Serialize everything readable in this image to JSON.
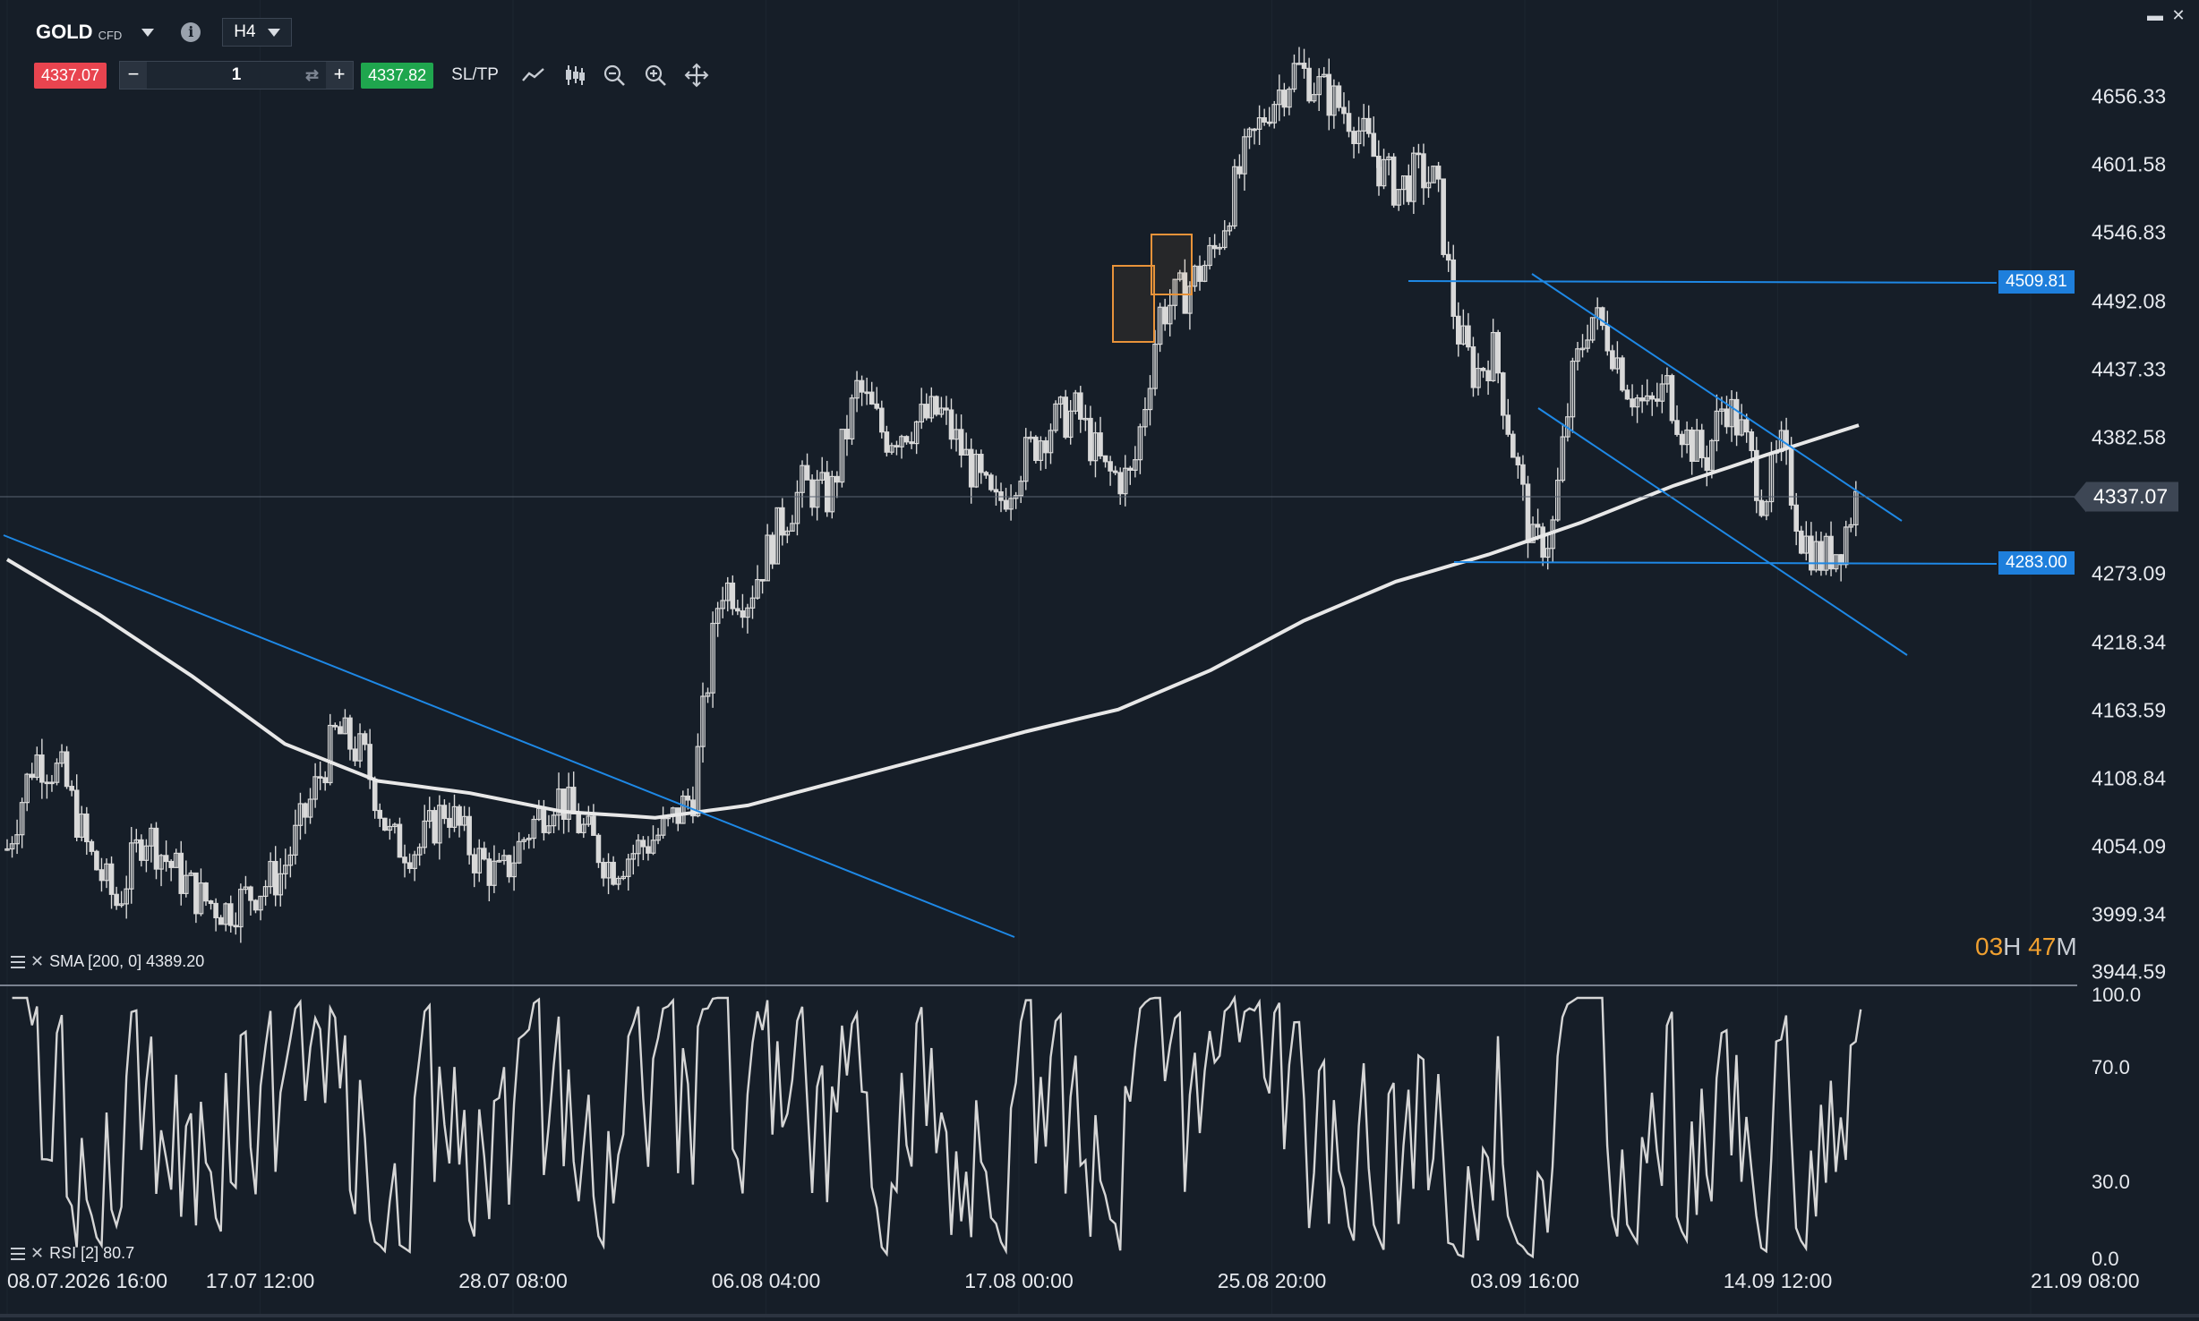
{
  "header": {
    "symbol": "GOLD",
    "instrument_type": "CFD",
    "timeframe": "H4"
  },
  "trade_bar": {
    "sell_price": "4337.07",
    "quantity": "1",
    "buy_price": "4337.82",
    "sltp_label": "SL/TP",
    "minus_label": "−",
    "plus_label": "+"
  },
  "icons": {
    "symbol_dropdown": "caret-down-icon",
    "info": "info-icon",
    "swap": "swap-icon",
    "line_chart": "line-chart-icon",
    "candles": "candlestick-icon",
    "zoom_out": "zoom-out-icon",
    "zoom_in": "zoom-in-icon",
    "crosshair": "crosshair-icon",
    "minimize": "minimize-icon",
    "close": "close-icon"
  },
  "price_axis": [
    "4656.33",
    "4601.58",
    "4546.83",
    "4492.08",
    "4437.33",
    "4382.58",
    "4273.09",
    "4218.34",
    "4163.59",
    "4108.84",
    "4054.09",
    "3999.34",
    "3944.59"
  ],
  "current_price": "4337.07",
  "level_markers": [
    "4509.81",
    "4283.00"
  ],
  "rsi_axis": [
    "100.0",
    "70.0",
    "30.0",
    "0.0"
  ],
  "time_axis": [
    "08.07.2026 16:00",
    "17.07 12:00",
    "28.07 08:00",
    "06.08 04:00",
    "17.08 00:00",
    "25.08 20:00",
    "03.09 16:00",
    "14.09 12:00",
    "21.09 08:00"
  ],
  "indicators": {
    "sma_label": "SMA [200, 0] 4389.20",
    "rsi_label": "RSI [2] 80.7"
  },
  "countdown": {
    "hours": "03",
    "hours_unit": "H",
    "minutes": "47",
    "minutes_unit": "M"
  },
  "colors": {
    "background": "#161e28",
    "sell": "#e8444f",
    "buy": "#1fa64e",
    "trendline": "#1e88e5",
    "sma": "#e8e8e8",
    "candle": "#d9d9d9",
    "highlight_box": "#e8933a",
    "countdown": "#f0a030"
  },
  "chart_data": {
    "type": "candlestick",
    "timeframe": "H4",
    "y_range": [
      3944.59,
      4711.08
    ],
    "close_path": [
      [
        0,
        4045
      ],
      [
        0.02,
        4120
      ],
      [
        0.04,
        4105
      ],
      [
        0.06,
        4040
      ],
      [
        0.08,
        4000
      ],
      [
        0.1,
        4060
      ],
      [
        0.12,
        4030
      ],
      [
        0.14,
        4005
      ],
      [
        0.16,
        3995
      ],
      [
        0.18,
        4010
      ],
      [
        0.2,
        4025
      ],
      [
        0.22,
        4080
      ],
      [
        0.24,
        4140
      ],
      [
        0.26,
        4120
      ],
      [
        0.28,
        4050
      ],
      [
        0.3,
        4045
      ],
      [
        0.32,
        4080
      ],
      [
        0.34,
        4040
      ],
      [
        0.36,
        4020
      ],
      [
        0.38,
        4060
      ],
      [
        0.4,
        4090
      ],
      [
        0.42,
        4060
      ],
      [
        0.44,
        4030
      ],
      [
        0.46,
        4045
      ],
      [
        0.48,
        4060
      ],
      [
        0.5,
        4090
      ],
      [
        0.52,
        4260
      ],
      [
        0.54,
        4250
      ],
      [
        0.56,
        4300
      ],
      [
        0.58,
        4340
      ],
      [
        0.6,
        4330
      ],
      [
        0.62,
        4420
      ],
      [
        0.64,
        4380
      ],
      [
        0.66,
        4390
      ],
      [
        0.68,
        4400
      ],
      [
        0.7,
        4360
      ],
      [
        0.72,
        4320
      ],
      [
        0.74,
        4360
      ],
      [
        0.76,
        4390
      ],
      [
        0.78,
        4400
      ],
      [
        0.8,
        4350
      ],
      [
        0.82,
        4345
      ],
      [
        0.84,
        4480
      ],
      [
        0.86,
        4500
      ],
      [
        0.88,
        4530
      ],
      [
        0.9,
        4600
      ],
      [
        0.92,
        4650
      ],
      [
        0.94,
        4680
      ],
      [
        0.96,
        4660
      ],
      [
        0.98,
        4640
      ],
      [
        1.0,
        4600
      ]
    ],
    "close_path_2": [
      [
        0,
        4600
      ],
      [
        0.04,
        4580
      ],
      [
        0.08,
        4595
      ],
      [
        0.12,
        4585
      ],
      [
        0.16,
        4470
      ],
      [
        0.2,
        4430
      ],
      [
        0.24,
        4450
      ],
      [
        0.28,
        4370
      ],
      [
        0.32,
        4290
      ],
      [
        0.36,
        4300
      ],
      [
        0.4,
        4420
      ],
      [
        0.44,
        4480
      ],
      [
        0.48,
        4460
      ],
      [
        0.52,
        4420
      ],
      [
        0.56,
        4400
      ],
      [
        0.6,
        4420
      ],
      [
        0.64,
        4380
      ],
      [
        0.68,
        4360
      ],
      [
        0.72,
        4410
      ],
      [
        0.76,
        4380
      ],
      [
        0.8,
        4330
      ],
      [
        0.84,
        4370
      ],
      [
        0.88,
        4300
      ],
      [
        0.92,
        4280
      ],
      [
        0.96,
        4290
      ],
      [
        1.0,
        4337
      ]
    ],
    "sma_200": [
      [
        0,
        4280
      ],
      [
        0.05,
        4235
      ],
      [
        0.1,
        4185
      ],
      [
        0.15,
        4130
      ],
      [
        0.2,
        4100
      ],
      [
        0.25,
        4090
      ],
      [
        0.3,
        4075
      ],
      [
        0.35,
        4070
      ],
      [
        0.4,
        4080
      ],
      [
        0.45,
        4100
      ],
      [
        0.5,
        4120
      ],
      [
        0.55,
        4140
      ],
      [
        0.6,
        4158
      ],
      [
        0.65,
        4190
      ],
      [
        0.7,
        4230
      ],
      [
        0.75,
        4262
      ],
      [
        0.8,
        4284
      ],
      [
        0.85,
        4310
      ],
      [
        0.9,
        4340
      ],
      [
        0.95,
        4365
      ],
      [
        1.0,
        4389.2
      ]
    ],
    "sma_value": 4389.2,
    "current_price": 4337.07,
    "horizontal_levels": [
      4509.81,
      4283.0
    ],
    "rsi_period": 2,
    "rsi_value": 80.7,
    "rsi_range": [
      0,
      100
    ],
    "rsi_levels": [
      70,
      30
    ]
  }
}
